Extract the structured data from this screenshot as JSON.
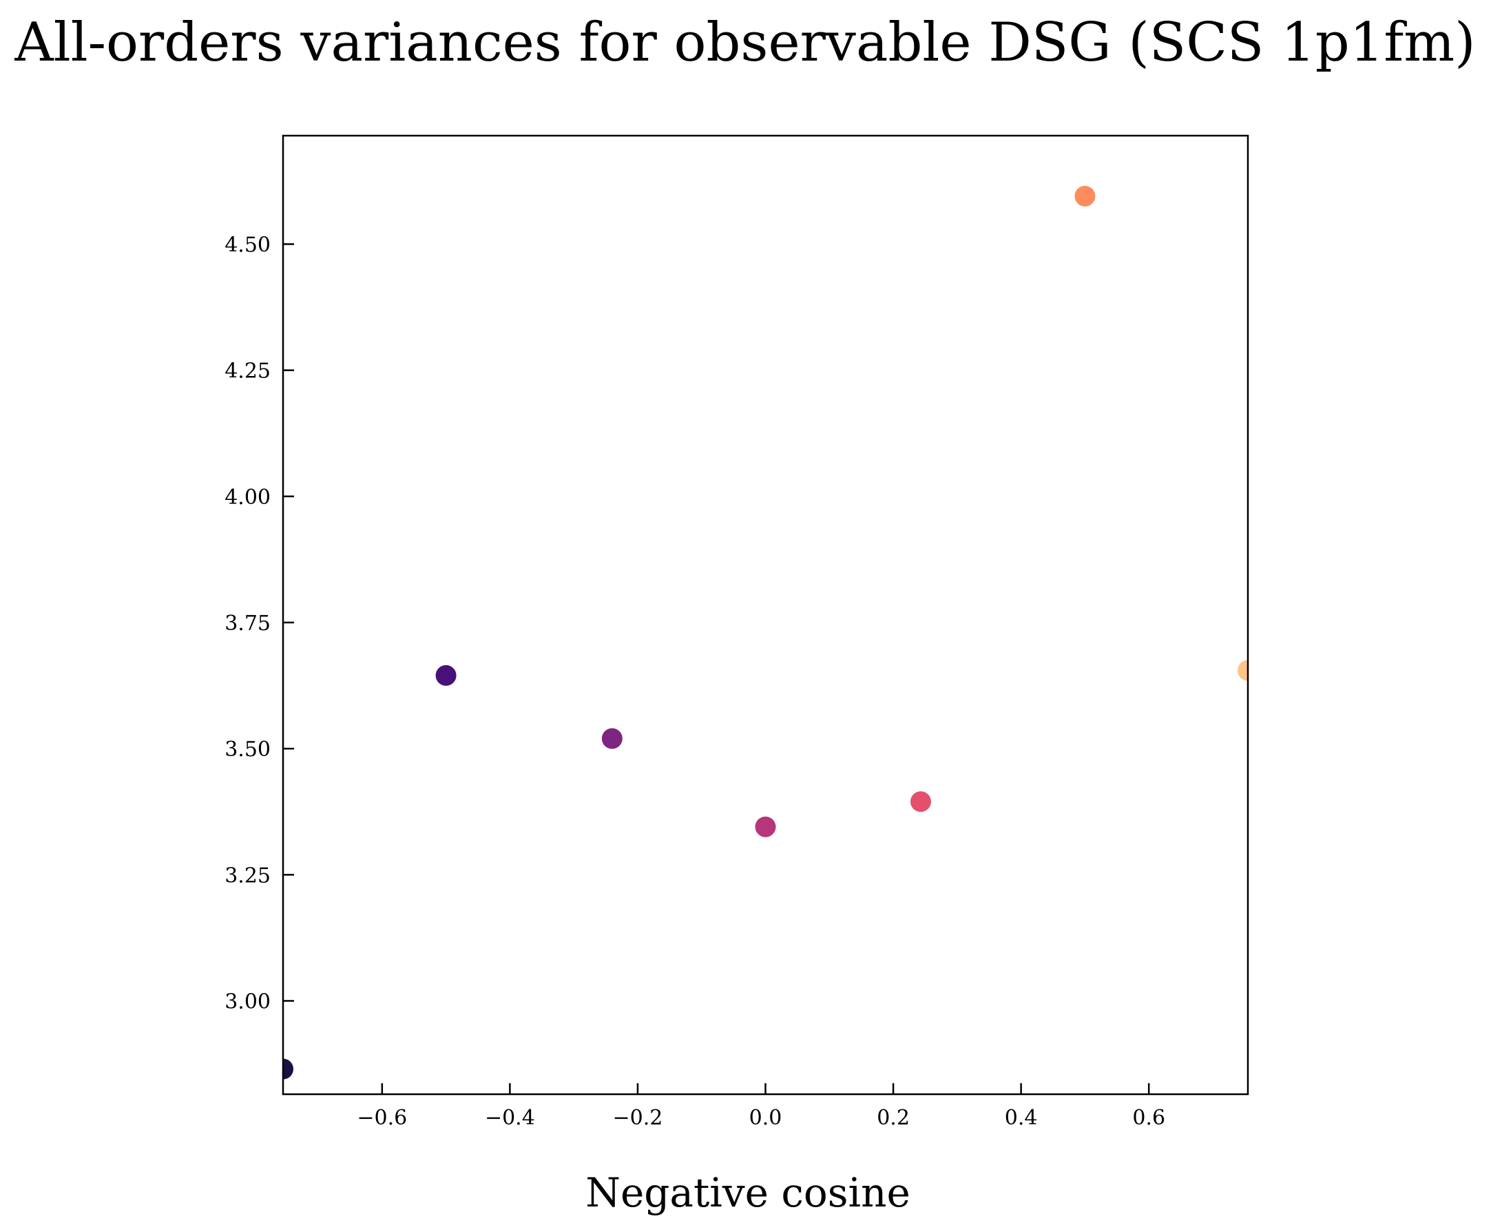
{
  "chart_data": {
    "type": "scatter",
    "title": "All-orders variances for observable DSG (SCS 1p1fm)",
    "xlabel": "Negative cosine",
    "ylabel": "",
    "xlim": [
      -0.755,
      0.755
    ],
    "ylim": [
      2.815,
      4.715
    ],
    "xticks": [
      -0.6,
      -0.4,
      -0.2,
      0.0,
      0.2,
      0.4,
      0.6
    ],
    "xtick_labels": [
      "−0.6",
      "−0.4",
      "−0.2",
      "0.0",
      "0.2",
      "0.4",
      "0.6"
    ],
    "yticks": [
      3.0,
      3.25,
      3.5,
      3.75,
      4.0,
      4.25,
      4.5
    ],
    "ytick_labels": [
      "3.00",
      "3.25",
      "3.50",
      "3.75",
      "4.00",
      "4.25",
      "4.50"
    ],
    "grid": false,
    "colormap": "magma",
    "points": [
      {
        "x": -0.755,
        "y": 2.865,
        "color": "#1b1042"
      },
      {
        "x": -0.5,
        "y": 3.645,
        "color": "#4a1079"
      },
      {
        "x": -0.24,
        "y": 3.52,
        "color": "#7e2482"
      },
      {
        "x": 0.0,
        "y": 3.345,
        "color": "#b5367a"
      },
      {
        "x": 0.243,
        "y": 3.395,
        "color": "#e4506b"
      },
      {
        "x": 0.5,
        "y": 4.595,
        "color": "#fd8d5f"
      },
      {
        "x": 0.755,
        "y": 3.655,
        "color": "#fec488"
      }
    ]
  }
}
